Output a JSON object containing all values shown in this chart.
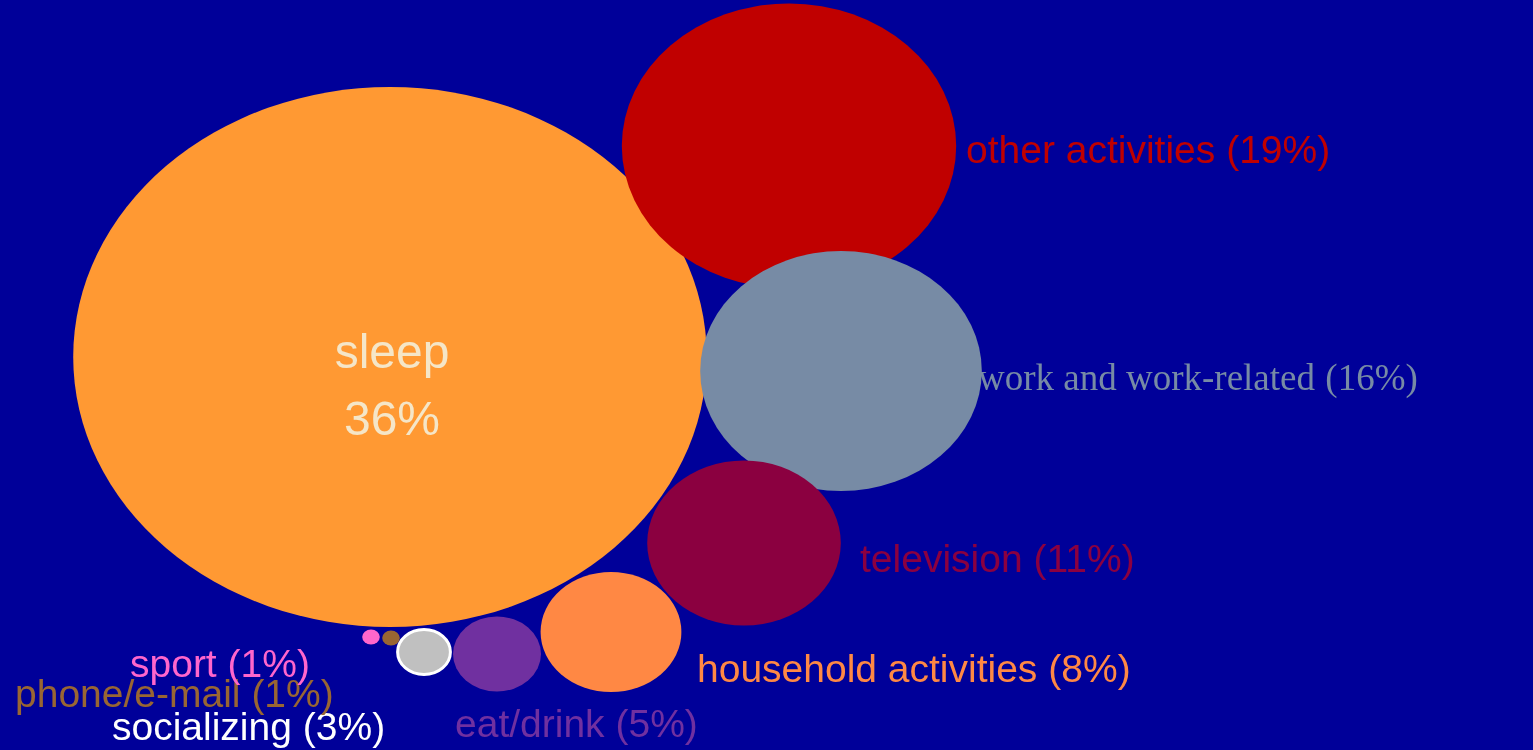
{
  "chart_data": {
    "type": "other",
    "categories": [
      "sleep",
      "other activities",
      "work and work-related",
      "television",
      "household activities",
      "eat/drink",
      "socializing",
      "phone/e-mail",
      "sport"
    ],
    "values": [
      36,
      19,
      16,
      11,
      8,
      5,
      3,
      1,
      1
    ],
    "value_labels": [
      "36%",
      "(19%)",
      "(16%)",
      "(11%)",
      "(8%)",
      "(5%)",
      "(3%)",
      "(1%)",
      "(1%)"
    ],
    "colors": [
      "#ff9933",
      "#c00000",
      "#778ba5",
      "#8b0040",
      "#ff8844",
      "#7030a0",
      "#c0c0c0",
      "#996633",
      "#ff66cc"
    ]
  }
}
